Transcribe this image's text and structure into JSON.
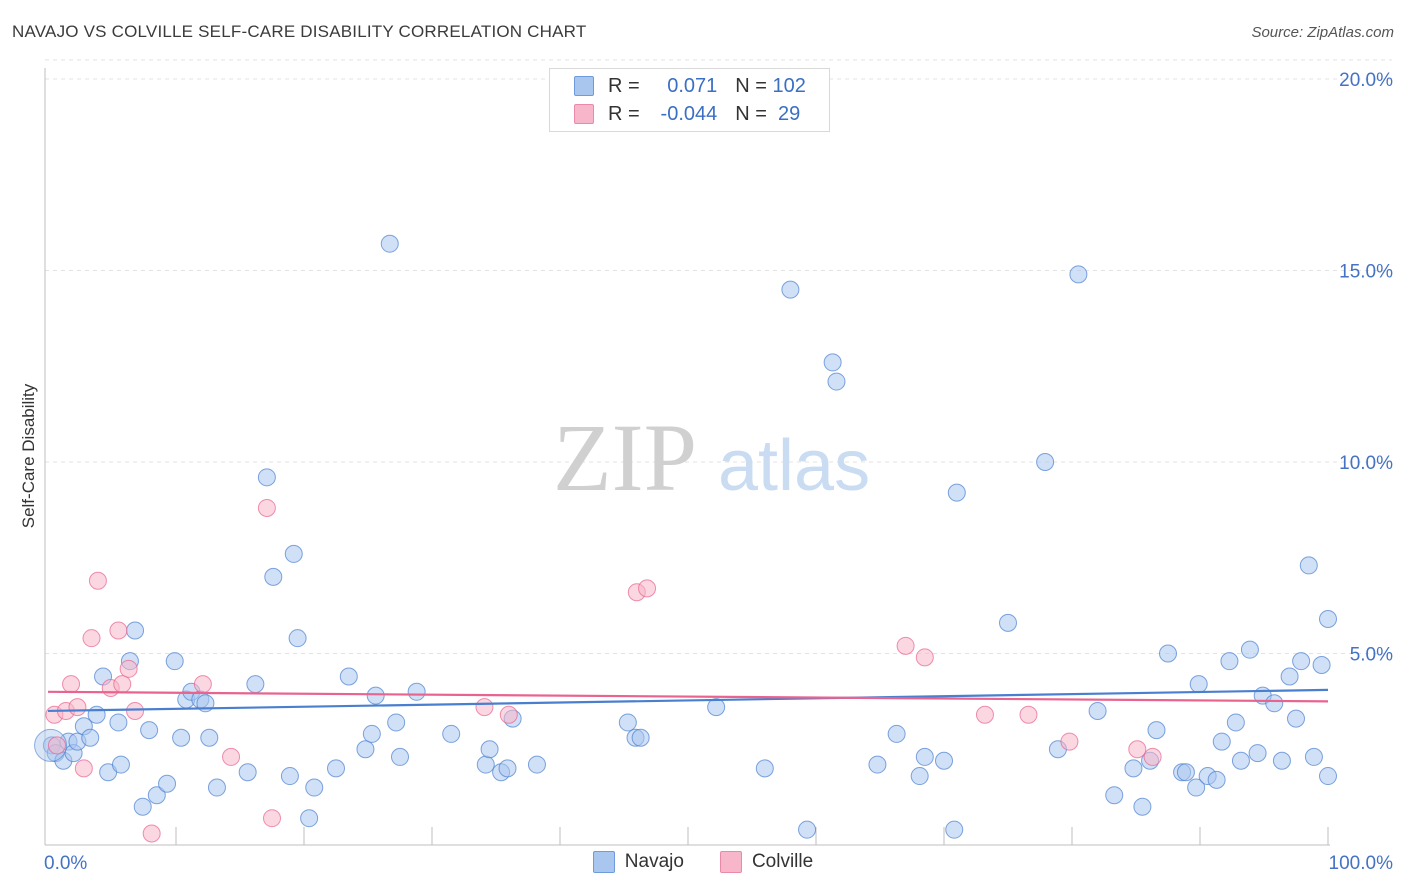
{
  "title": "NAVAJO VS COLVILLE SELF-CARE DISABILITY CORRELATION CHART",
  "source": "Source: ZipAtlas.com",
  "watermark": {
    "zip": "ZIP",
    "atlas": "atlas"
  },
  "legend": {
    "rows": [
      {
        "r_label": "R = ",
        "r_value": " 0.071",
        "n_label": "N = ",
        "n_value": "102",
        "color": "#a9c6ee"
      },
      {
        "r_label": "R = ",
        "r_value": "-0.044",
        "n_label": "N = ",
        "n_value": " 29",
        "color": "#f7b6c9"
      }
    ]
  },
  "bottom_legend": [
    {
      "label": "Navajo",
      "color": "#a9c6ee"
    },
    {
      "label": "Colville",
      "color": "#f7b6c9"
    }
  ],
  "chart_data": {
    "type": "scatter",
    "title": "NAVAJO VS COLVILLE SELF-CARE DISABILITY CORRELATION CHART",
    "xlabel": "",
    "ylabel": "Self-Care Disability",
    "xlim": [
      0,
      100
    ],
    "ylim": [
      0,
      21
    ],
    "x_tick_labels": [
      "0.0%",
      "100.0%"
    ],
    "y_ticks": [
      5,
      10,
      15,
      20
    ],
    "y_tick_labels": [
      "5.0%",
      "10.0%",
      "15.0%",
      "20.0%"
    ],
    "grid": true,
    "series": [
      {
        "name": "Navajo",
        "color": "#4a7fd0",
        "fill": "#a9c6ee",
        "trend": {
          "x0": 0,
          "y0": 3.5,
          "x1": 100,
          "y1": 4.05
        },
        "points": [
          [
            0.3,
            2.6
          ],
          [
            0.6,
            2.4
          ],
          [
            1.2,
            2.2
          ],
          [
            1.6,
            2.7
          ],
          [
            2.0,
            2.4
          ],
          [
            2.3,
            2.7
          ],
          [
            2.8,
            3.1
          ],
          [
            3.3,
            2.8
          ],
          [
            3.8,
            3.4
          ],
          [
            4.3,
            4.4
          ],
          [
            4.7,
            1.9
          ],
          [
            5.5,
            3.2
          ],
          [
            5.7,
            2.1
          ],
          [
            6.4,
            4.8
          ],
          [
            6.8,
            5.6
          ],
          [
            7.4,
            1.0
          ],
          [
            7.9,
            3.0
          ],
          [
            8.5,
            1.3
          ],
          [
            9.3,
            1.6
          ],
          [
            9.9,
            4.8
          ],
          [
            10.4,
            2.8
          ],
          [
            10.8,
            3.8
          ],
          [
            11.2,
            4.0
          ],
          [
            11.9,
            3.8
          ],
          [
            12.3,
            3.7
          ],
          [
            12.6,
            2.8
          ],
          [
            13.2,
            1.5
          ],
          [
            15.6,
            1.9
          ],
          [
            16.2,
            4.2
          ],
          [
            17.1,
            9.6
          ],
          [
            17.6,
            7.0
          ],
          [
            18.9,
            1.8
          ],
          [
            19.2,
            7.6
          ],
          [
            19.5,
            5.4
          ],
          [
            20.4,
            0.7
          ],
          [
            20.8,
            1.5
          ],
          [
            22.5,
            2.0
          ],
          [
            23.5,
            4.4
          ],
          [
            24.8,
            2.5
          ],
          [
            25.3,
            2.9
          ],
          [
            25.6,
            3.9
          ],
          [
            26.7,
            15.7
          ],
          [
            27.2,
            3.2
          ],
          [
            27.5,
            2.3
          ],
          [
            28.8,
            4.0
          ],
          [
            31.5,
            2.9
          ],
          [
            34.2,
            2.1
          ],
          [
            34.5,
            2.5
          ],
          [
            35.4,
            1.9
          ],
          [
            35.9,
            2.0
          ],
          [
            36.3,
            3.3
          ],
          [
            38.2,
            2.1
          ],
          [
            45.3,
            3.2
          ],
          [
            45.9,
            2.8
          ],
          [
            46.3,
            2.8
          ],
          [
            52.2,
            3.6
          ],
          [
            56.0,
            2.0
          ],
          [
            58.0,
            14.5
          ],
          [
            59.3,
            0.4
          ],
          [
            61.3,
            12.6
          ],
          [
            61.6,
            12.1
          ],
          [
            64.8,
            2.1
          ],
          [
            66.3,
            2.9
          ],
          [
            68.1,
            1.8
          ],
          [
            68.5,
            2.3
          ],
          [
            70.0,
            2.2
          ],
          [
            71.0,
            9.2
          ],
          [
            70.8,
            0.4
          ],
          [
            75.0,
            5.8
          ],
          [
            77.9,
            10.0
          ],
          [
            78.9,
            2.5
          ],
          [
            80.5,
            14.9
          ],
          [
            82.0,
            3.5
          ],
          [
            83.3,
            1.3
          ],
          [
            84.8,
            2.0
          ],
          [
            85.5,
            1.0
          ],
          [
            86.1,
            2.2
          ],
          [
            86.6,
            3.0
          ],
          [
            87.5,
            5.0
          ],
          [
            88.6,
            1.9
          ],
          [
            88.9,
            1.9
          ],
          [
            89.7,
            1.5
          ],
          [
            89.9,
            4.2
          ],
          [
            90.6,
            1.8
          ],
          [
            91.3,
            1.7
          ],
          [
            91.7,
            2.7
          ],
          [
            92.3,
            4.8
          ],
          [
            92.8,
            3.2
          ],
          [
            93.2,
            2.2
          ],
          [
            93.9,
            5.1
          ],
          [
            94.5,
            2.4
          ],
          [
            94.9,
            3.9
          ],
          [
            95.8,
            3.7
          ],
          [
            96.4,
            2.2
          ],
          [
            97.0,
            4.4
          ],
          [
            97.5,
            3.3
          ],
          [
            97.9,
            4.8
          ],
          [
            98.5,
            7.3
          ],
          [
            98.9,
            2.3
          ],
          [
            99.5,
            4.7
          ],
          [
            100.0,
            1.8
          ],
          [
            100.0,
            5.9
          ]
        ]
      },
      {
        "name": "Colville",
        "color": "#e8638e",
        "fill": "#f7b6c9",
        "trend": {
          "x0": 0,
          "y0": 4.0,
          "x1": 100,
          "y1": 3.75
        },
        "points": [
          [
            0.5,
            3.4
          ],
          [
            0.7,
            2.6
          ],
          [
            1.4,
            3.5
          ],
          [
            1.8,
            4.2
          ],
          [
            2.3,
            3.6
          ],
          [
            2.8,
            2.0
          ],
          [
            3.4,
            5.4
          ],
          [
            3.9,
            6.9
          ],
          [
            4.9,
            4.1
          ],
          [
            5.5,
            5.6
          ],
          [
            5.8,
            4.2
          ],
          [
            6.3,
            4.6
          ],
          [
            6.8,
            3.5
          ],
          [
            8.1,
            0.3
          ],
          [
            12.1,
            4.2
          ],
          [
            14.3,
            2.3
          ],
          [
            17.1,
            8.8
          ],
          [
            17.5,
            0.7
          ],
          [
            34.1,
            3.6
          ],
          [
            36.0,
            3.4
          ],
          [
            46.0,
            6.6
          ],
          [
            46.8,
            6.7
          ],
          [
            67.0,
            5.2
          ],
          [
            68.5,
            4.9
          ],
          [
            73.2,
            3.4
          ],
          [
            76.6,
            3.4
          ],
          [
            79.8,
            2.7
          ],
          [
            85.1,
            2.5
          ],
          [
            86.3,
            2.3
          ]
        ]
      }
    ],
    "reference_line": {
      "y": 20.5
    }
  }
}
